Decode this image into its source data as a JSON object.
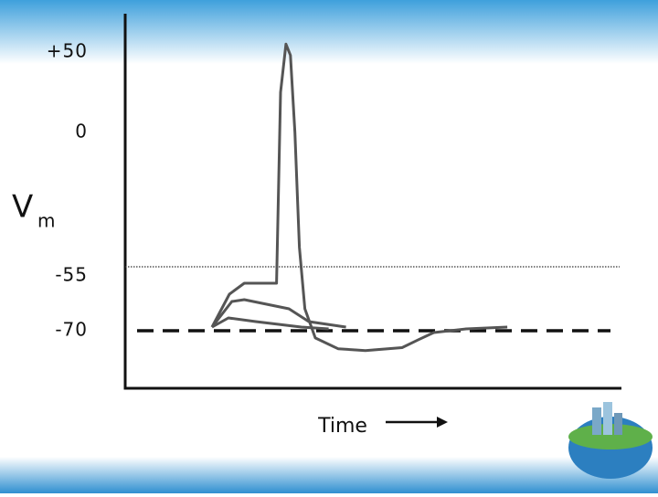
{
  "chart_data": {
    "type": "line",
    "y_label": "V",
    "y_label_sub": "m",
    "x_label": "Time",
    "xlim": [
      0,
      100
    ],
    "ylim": [
      -86,
      74
    ],
    "yticks": [
      {
        "value": 50,
        "label": "+50"
      },
      0,
      -55,
      -70
    ],
    "color": "#555555",
    "series": [
      {
        "x": [
          17.5,
          21,
          24,
          30.5,
          31.3,
          32.4,
          33.3,
          34.2,
          35.1,
          36.2,
          38.3,
          42.9,
          48.4,
          55.8,
          59.1,
          62.2,
          68.7,
          77
        ],
        "values": [
          -69,
          -60,
          -57,
          -57,
          25,
          55,
          48,
          0,
          -44,
          -64,
          -72,
          -75,
          -75.5,
          -74.7,
          -72.5,
          -70.5,
          -69.5,
          -69
        ]
      },
      {
        "x": [
          17.5,
          21.5,
          24,
          33,
          37,
          44.5
        ],
        "values": [
          -69,
          -62,
          -61.5,
          -64,
          -67.5,
          -69
        ]
      },
      {
        "x": [
          17.5,
          20.8,
          26.3,
          35.5,
          41
        ],
        "values": [
          -69,
          -66.5,
          -67.5,
          -69,
          -69.5
        ]
      }
    ]
  }
}
